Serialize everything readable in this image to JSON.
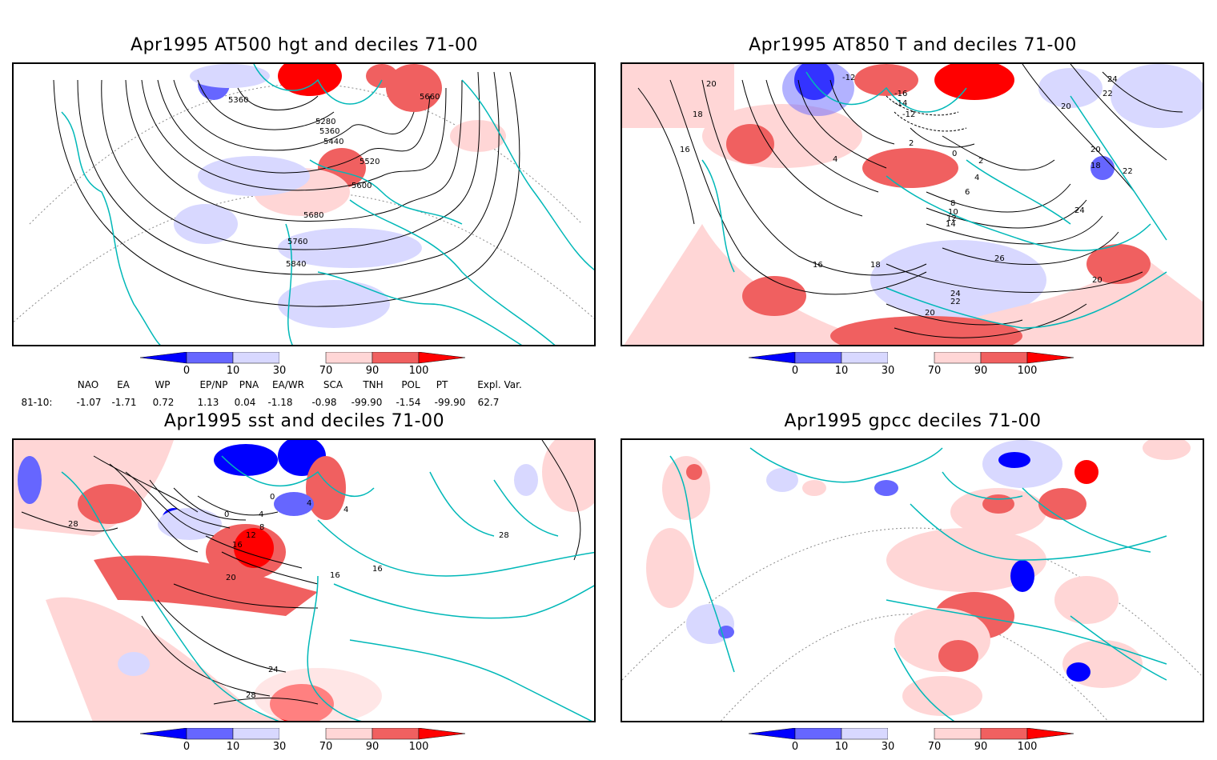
{
  "panels": [
    {
      "id": "hgt",
      "title": "Apr1995 AT500 hgt and deciles 71-00",
      "contour_labels": [
        "5360",
        "5280",
        "5360",
        "5440",
        "5520",
        "5600",
        "5680",
        "5760",
        "5840",
        "5660"
      ]
    },
    {
      "id": "t850",
      "title": "Apr1995 AT850 T and deciles 71-00",
      "contour_labels": [
        "20",
        "18",
        "16",
        "-12",
        "-16",
        "-14",
        "-12",
        "2",
        "4",
        "0",
        "2",
        "4",
        "6",
        "8",
        "10",
        "12",
        "14",
        "16",
        "18",
        "26",
        "24",
        "22",
        "20",
        "24",
        "22",
        "20",
        "18",
        "20",
        "22",
        "24",
        "20"
      ]
    },
    {
      "id": "sst",
      "title": "Apr1995 sst and deciles 71-00",
      "contour_labels": [
        "28",
        "0",
        "0",
        "4",
        "4",
        "8",
        "12",
        "16",
        "20",
        "16",
        "16",
        "24",
        "28",
        "4",
        "28"
      ]
    },
    {
      "id": "gpcc",
      "title": "Apr1995 gpcc deciles 71-00",
      "contour_labels": []
    }
  ],
  "colorbar": {
    "ticks": [
      "0",
      "10",
      "30",
      "70",
      "90",
      "100"
    ],
    "colors": [
      "#0000ff",
      "#6666ff",
      "#d8d8ff",
      "#ffffff",
      "#ffd6d6",
      "#f06060",
      "#ff0000"
    ]
  },
  "indices": {
    "headers": [
      "NAO",
      "EA",
      "WP",
      "EP/NP",
      "PNA",
      "EA/WR",
      "SCA",
      "TNH",
      "POL",
      "PT",
      "Expl. Var."
    ],
    "row_label": "81-10:",
    "values": [
      "-1.07",
      "-1.71",
      "0.72",
      "1.13",
      "0.04",
      "-1.18",
      "-0.98",
      "-99.90",
      "-1.54",
      "-99.90",
      "62.7"
    ]
  }
}
